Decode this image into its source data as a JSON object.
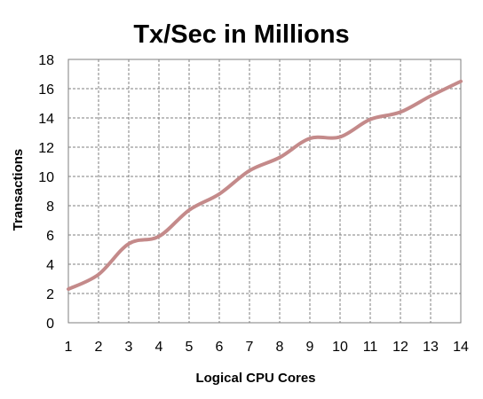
{
  "chart_data": {
    "type": "line",
    "title": "Tx/Sec in Millions",
    "xlabel": "Logical CPU Cores",
    "ylabel": "Transactions",
    "x": [
      1,
      2,
      3,
      4,
      5,
      6,
      7,
      8,
      9,
      10,
      11,
      12,
      13,
      14
    ],
    "series": [
      {
        "values": [
          2.3,
          3.3,
          5.4,
          5.9,
          7.7,
          8.8,
          10.4,
          11.3,
          12.6,
          12.7,
          13.9,
          14.4,
          15.5,
          16.5
        ]
      }
    ],
    "xlim": [
      1,
      14
    ],
    "ylim": [
      0,
      18
    ],
    "xticks": [
      1,
      2,
      3,
      4,
      5,
      6,
      7,
      8,
      9,
      10,
      11,
      12,
      13,
      14
    ],
    "yticks": [
      0,
      2,
      4,
      6,
      8,
      10,
      12,
      14,
      16,
      18
    ],
    "grid": true,
    "line_color": "#c48a8a",
    "grid_color": "#7f7f7f"
  }
}
